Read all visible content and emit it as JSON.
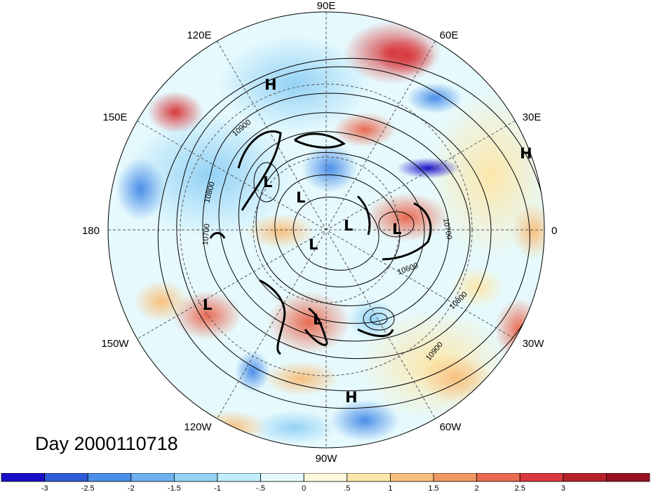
{
  "map": {
    "projection": "north-polar-stereographic",
    "contour_field_interval": 50,
    "lon_labels": [
      {
        "text": "90E",
        "lon": 90
      },
      {
        "text": "60E",
        "lon": 60
      },
      {
        "text": "30E",
        "lon": 30
      },
      {
        "text": "0",
        "lon": 0
      },
      {
        "text": "30W",
        "lon": -30
      },
      {
        "text": "60W",
        "lon": -60
      },
      {
        "text": "90W",
        "lon": -90
      },
      {
        "text": "120W",
        "lon": -120
      },
      {
        "text": "150W",
        "lon": -150
      },
      {
        "text": "180",
        "lon": 180
      },
      {
        "text": "150E",
        "lon": 150
      },
      {
        "text": "120E",
        "lon": 120
      }
    ],
    "contour_labels": [
      "10900",
      "10800",
      "10700",
      "10700",
      "10600",
      "10800",
      "10900"
    ],
    "pressure_centers": [
      {
        "type": "H",
        "label": "H"
      },
      {
        "type": "H",
        "label": "H"
      },
      {
        "type": "H",
        "label": "H"
      },
      {
        "type": "L",
        "label": "L"
      },
      {
        "type": "L",
        "label": "L"
      },
      {
        "type": "L",
        "label": "L"
      },
      {
        "type": "L",
        "label": "L"
      },
      {
        "type": "L",
        "label": "L"
      },
      {
        "type": "L",
        "label": "L"
      },
      {
        "type": "L",
        "label": "L"
      }
    ]
  },
  "day_label": "Day 2000110718",
  "colorbar": {
    "colors": [
      "#1a10c8",
      "#2f5bd8",
      "#4a8ee8",
      "#6cb0ef",
      "#94d2f5",
      "#bfeefa",
      "#e6fafd",
      "#fdf9da",
      "#fce7aa",
      "#f8c07e",
      "#f19965",
      "#e96a52",
      "#d8383c",
      "#b5202a",
      "#98101f"
    ],
    "tick_labels": [
      "-3",
      "-2.5",
      "-2",
      "-1.5",
      "-1",
      "-.5",
      "0",
      ".5",
      "1",
      "1.5",
      "2",
      "2.5",
      "3"
    ]
  }
}
